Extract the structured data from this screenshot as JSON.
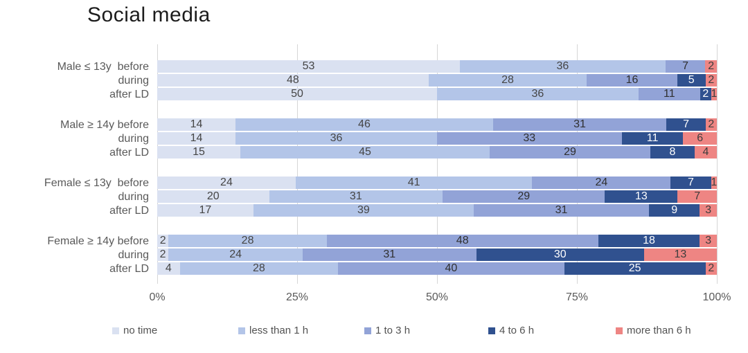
{
  "chart_data": {
    "type": "bar",
    "orientation": "horizontal",
    "stacked": true,
    "title": "Social media",
    "xlabel": "",
    "ylabel": "",
    "xlim": [
      0,
      100
    ],
    "x_ticks": [
      0,
      25,
      50,
      75,
      100
    ],
    "x_tick_labels": [
      "0%",
      "25%",
      "50%",
      "75%",
      "100%"
    ],
    "grid": "vertical",
    "legend_position": "bottom",
    "group_size": 3,
    "categories": [
      "Male ≤ 13y  before",
      "during",
      "after LD",
      "Male ≥ 14y before",
      "during",
      "after LD",
      "Female ≤ 13y  before",
      "during",
      "after LD",
      "Female ≥ 14y before",
      "during",
      "after LD"
    ],
    "series": [
      {
        "name": "no time",
        "color": "#dae1f1",
        "values": [
          53,
          48,
          50,
          14,
          14,
          15,
          24,
          20,
          17,
          2,
          2,
          4
        ]
      },
      {
        "name": "less than 1 h",
        "color": "#b3c5e8",
        "values": [
          36,
          28,
          36,
          46,
          36,
          45,
          41,
          31,
          39,
          28,
          24,
          28
        ]
      },
      {
        "name": "1 to 3 h",
        "color": "#92a3d7",
        "values": [
          7,
          16,
          11,
          31,
          33,
          29,
          24,
          29,
          31,
          48,
          31,
          40
        ]
      },
      {
        "name": "4 to 6 h",
        "color": "#30518f",
        "values": [
          0,
          5,
          2,
          7,
          11,
          8,
          7,
          13,
          9,
          18,
          30,
          25
        ]
      },
      {
        "name": "more than 6 h",
        "color": "#ee8583",
        "values": [
          2,
          2,
          1,
          2,
          6,
          4,
          1,
          7,
          3,
          3,
          13,
          2
        ]
      }
    ],
    "gridline_color": "#d6d6d6"
  }
}
